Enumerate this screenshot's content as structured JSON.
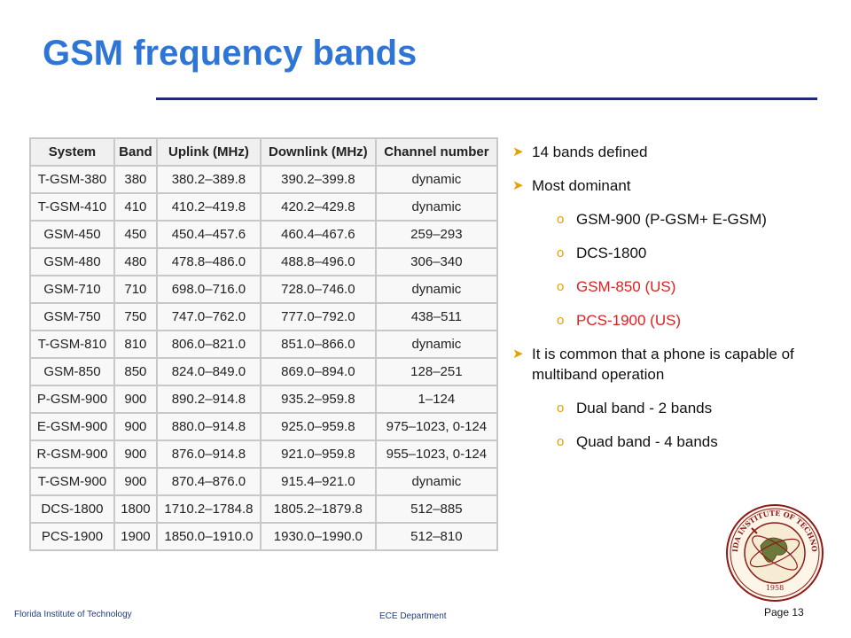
{
  "slide": {
    "title": "GSM frequency bands",
    "footer_left": "Florida Institute of Technology",
    "footer_center": "ECE Department",
    "page": "Page 13"
  },
  "table": {
    "headers": [
      "System",
      "Band",
      "Uplink (MHz)",
      "Downlink (MHz)",
      "Channel number"
    ],
    "rows": [
      [
        "T-GSM-380",
        "380",
        "380.2–389.8",
        "390.2–399.8",
        "dynamic"
      ],
      [
        "T-GSM-410",
        "410",
        "410.2–419.8",
        "420.2–429.8",
        "dynamic"
      ],
      [
        "GSM-450",
        "450",
        "450.4–457.6",
        "460.4–467.6",
        "259–293"
      ],
      [
        "GSM-480",
        "480",
        "478.8–486.0",
        "488.8–496.0",
        "306–340"
      ],
      [
        "GSM-710",
        "710",
        "698.0–716.0",
        "728.0–746.0",
        "dynamic"
      ],
      [
        "GSM-750",
        "750",
        "747.0–762.0",
        "777.0–792.0",
        "438–511"
      ],
      [
        "T-GSM-810",
        "810",
        "806.0–821.0",
        "851.0–866.0",
        "dynamic"
      ],
      [
        "GSM-850",
        "850",
        "824.0–849.0",
        "869.0–894.0",
        "128–251"
      ],
      [
        "P-GSM-900",
        "900",
        "890.2–914.8",
        "935.2–959.8",
        "1–124"
      ],
      [
        "E-GSM-900",
        "900",
        "880.0–914.8",
        "925.0–959.8",
        "975–1023, 0-124"
      ],
      [
        "R-GSM-900",
        "900",
        "876.0–914.8",
        "921.0–959.8",
        "955–1023, 0-124"
      ],
      [
        "T-GSM-900",
        "900",
        "870.4–876.0",
        "915.4–921.0",
        "dynamic"
      ],
      [
        "DCS-1800",
        "1800",
        "1710.2–1784.8",
        "1805.2–1879.8",
        "512–885"
      ],
      [
        "PCS-1900",
        "1900",
        "1850.0–1910.0",
        "1930.0–1990.0",
        "512–810"
      ]
    ]
  },
  "bullets": {
    "b1": "14 bands defined",
    "b2": "Most dominant",
    "s1": "GSM-900 (P-GSM+ E-GSM)",
    "s2": "DCS-1800",
    "s3": "GSM-850 (US)",
    "s4": "PCS-1900 (US)",
    "b3": "It is common that a phone is capable of multiband operation",
    "s5": "Dual band - 2 bands",
    "s6": "Quad band  - 4 bands"
  },
  "seal": {
    "text": "FLORIDA INSTITUTE OF TECHNOLOGY",
    "year": "1958"
  },
  "colors": {
    "title": "#2E75D6",
    "rule": "#1F2A78",
    "bullet_marker": "#E8A000",
    "highlight_text": "#E02020",
    "seal": "#8B1A1A"
  },
  "icons": {
    "bullet": "arrow-bullet-icon",
    "sub_bullet": "circle-bullet-icon"
  }
}
